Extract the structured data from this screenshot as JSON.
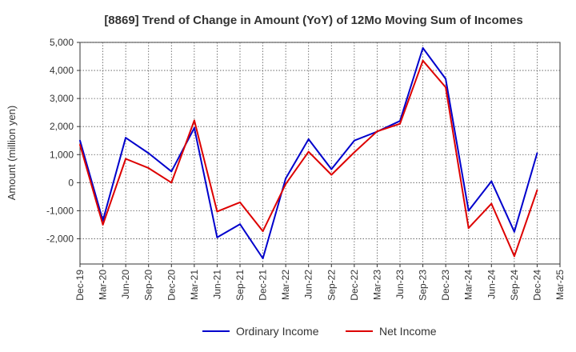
{
  "chart_data": {
    "type": "line",
    "title": "[8869]  Trend of Change in Amount (YoY) of 12Mo Moving Sum of Incomes",
    "xlabel": "",
    "ylabel": "Amount (million yen)",
    "ylim": [
      -2900,
      5000
    ],
    "yticks": [
      5000,
      4000,
      3000,
      2000,
      1000,
      0,
      -1000,
      -2000
    ],
    "ytick_labels": [
      "5,000",
      "4,000",
      "3,000",
      "2,000",
      "1,000",
      "0",
      "-1,000",
      "-2,000"
    ],
    "categories": [
      "Dec-19",
      "Mar-20",
      "Jun-20",
      "Sep-20",
      "Dec-20",
      "Mar-21",
      "Jun-21",
      "Sep-21",
      "Dec-21",
      "Mar-22",
      "Jun-22",
      "Sep-22",
      "Dec-22",
      "Mar-23",
      "Jun-23",
      "Sep-23",
      "Dec-23",
      "Mar-24",
      "Jun-24",
      "Sep-24",
      "Dec-24",
      "Mar-25"
    ],
    "grid": true,
    "legend_position": "bottom",
    "series": [
      {
        "name": "Ordinary Income",
        "color": "#0000cc",
        "values": [
          1500,
          -1350,
          1600,
          1050,
          400,
          1950,
          -1950,
          -1480,
          -2700,
          150,
          1550,
          480,
          1500,
          1820,
          2200,
          4800,
          3700,
          -1000,
          50,
          -1750,
          1050,
          null
        ]
      },
      {
        "name": "Net Income",
        "color": "#dd0000",
        "values": [
          1350,
          -1500,
          850,
          520,
          0,
          2220,
          -1030,
          -700,
          -1730,
          -50,
          1100,
          280,
          1080,
          1830,
          2100,
          4350,
          3400,
          -1620,
          -750,
          -2620,
          -270,
          null
        ]
      }
    ]
  }
}
